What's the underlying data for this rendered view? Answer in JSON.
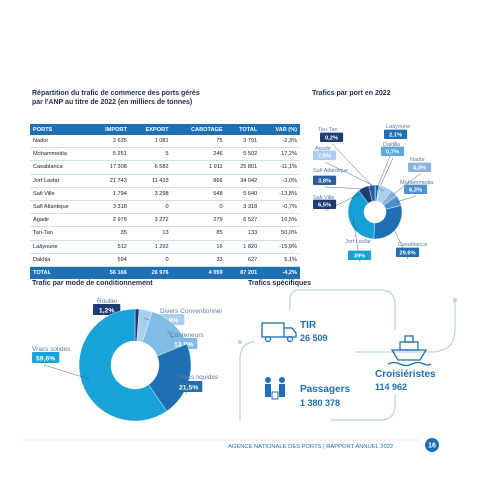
{
  "table": {
    "title": "Répartition du trafic de commerce des ports gérés par l'ANP au titre de 2022 (en milliers de tonnes)",
    "headers": [
      "PORTS",
      "IMPORT",
      "EXPORT",
      "CABOTAGE",
      "TOTAL",
      "VAR (%)"
    ],
    "rows": [
      [
        "Nador",
        "2 635",
        "1 081",
        "75",
        "3 791",
        "-2,3%"
      ],
      [
        "Mohammedia",
        "5 251",
        "5",
        "246",
        "5 502",
        "17,2%"
      ],
      [
        "Casablanca",
        "17 308",
        "6 582",
        "1 911",
        "25 801",
        "-11,1%"
      ],
      [
        "Jorf Lasfar",
        "21 743",
        "11 433",
        "866",
        "34 042",
        "-3,0%"
      ],
      [
        "Safi Ville",
        "1 794",
        "3 298",
        "548",
        "5 640",
        "-13,8%"
      ],
      [
        "Safi Atlantique",
        "3 318",
        "0",
        "0",
        "3 318",
        "-0,7%"
      ],
      [
        "Agadir",
        "2 976",
        "3 272",
        "279",
        "6 527",
        "16,5%"
      ],
      [
        "Tan-Tan",
        "35",
        "13",
        "85",
        "133",
        "50,0%"
      ],
      [
        "Laâyoune",
        "512",
        "1 292",
        "16",
        "1 820",
        "-15,9%"
      ],
      [
        "Dakhla",
        "594",
        "0",
        "33",
        "627",
        "5,1%"
      ]
    ],
    "total": [
      "TOTAL",
      "56 166",
      "26 976",
      "4 059",
      "87 201",
      "-4,2%"
    ]
  },
  "chart_data": [
    {
      "type": "pie",
      "title": "Trafics par port en 2022",
      "categories": [
        "Tan-Tan",
        "Laâyoune",
        "Dakhla",
        "Agadir",
        "Nador",
        "Mohammedia",
        "Casablanca",
        "Jorf Lasfar",
        "Safi Ville",
        "Safi Atlantique"
      ],
      "values": [
        0.2,
        2.1,
        0.7,
        7.5,
        4.3,
        6.3,
        29.6,
        39,
        6.5,
        3.8
      ],
      "value_labels": [
        "0,2%",
        "2,1%",
        "0,7%",
        "7,5%",
        "4,3%",
        "6,3%",
        "29,6%",
        "39%",
        "6,5%",
        "3,8%"
      ],
      "colors": [
        "#1f3b73",
        "#1f6fb5",
        "#5aa7dc",
        "#a9cfee",
        "#8ab4dd",
        "#4d8fcf",
        "#1f6fb5",
        "#15a0d6",
        "#1f3b73",
        "#2b5d9e"
      ]
    },
    {
      "type": "pie",
      "title": "Trafic par mode de conditionnement",
      "categories": [
        "Roulier",
        "Divers Conventionnel",
        "Conteneurs",
        "Vracs liquides",
        "Vracs solides"
      ],
      "values": [
        1.2,
        3.8,
        13.9,
        21.5,
        59.6
      ],
      "value_labels": [
        "1,2%",
        "3,8%",
        "13,9%",
        "21,5%",
        "59,6%"
      ],
      "colors": [
        "#1f3b73",
        "#a9cfee",
        "#7fbde6",
        "#1f6fb5",
        "#1aa3d9"
      ]
    }
  ],
  "specific": {
    "title": "Trafics spécifiques",
    "items": [
      {
        "label": "TIR",
        "value": "26 509"
      },
      {
        "label": "Passagers",
        "value": "1 380 378"
      },
      {
        "label": "Croisiéristes",
        "value": "114 962"
      }
    ]
  },
  "footer": {
    "text": "AGENCE NATIONALE DES PORTS | RAPPORT ANNUEL 2022",
    "page": "16"
  }
}
